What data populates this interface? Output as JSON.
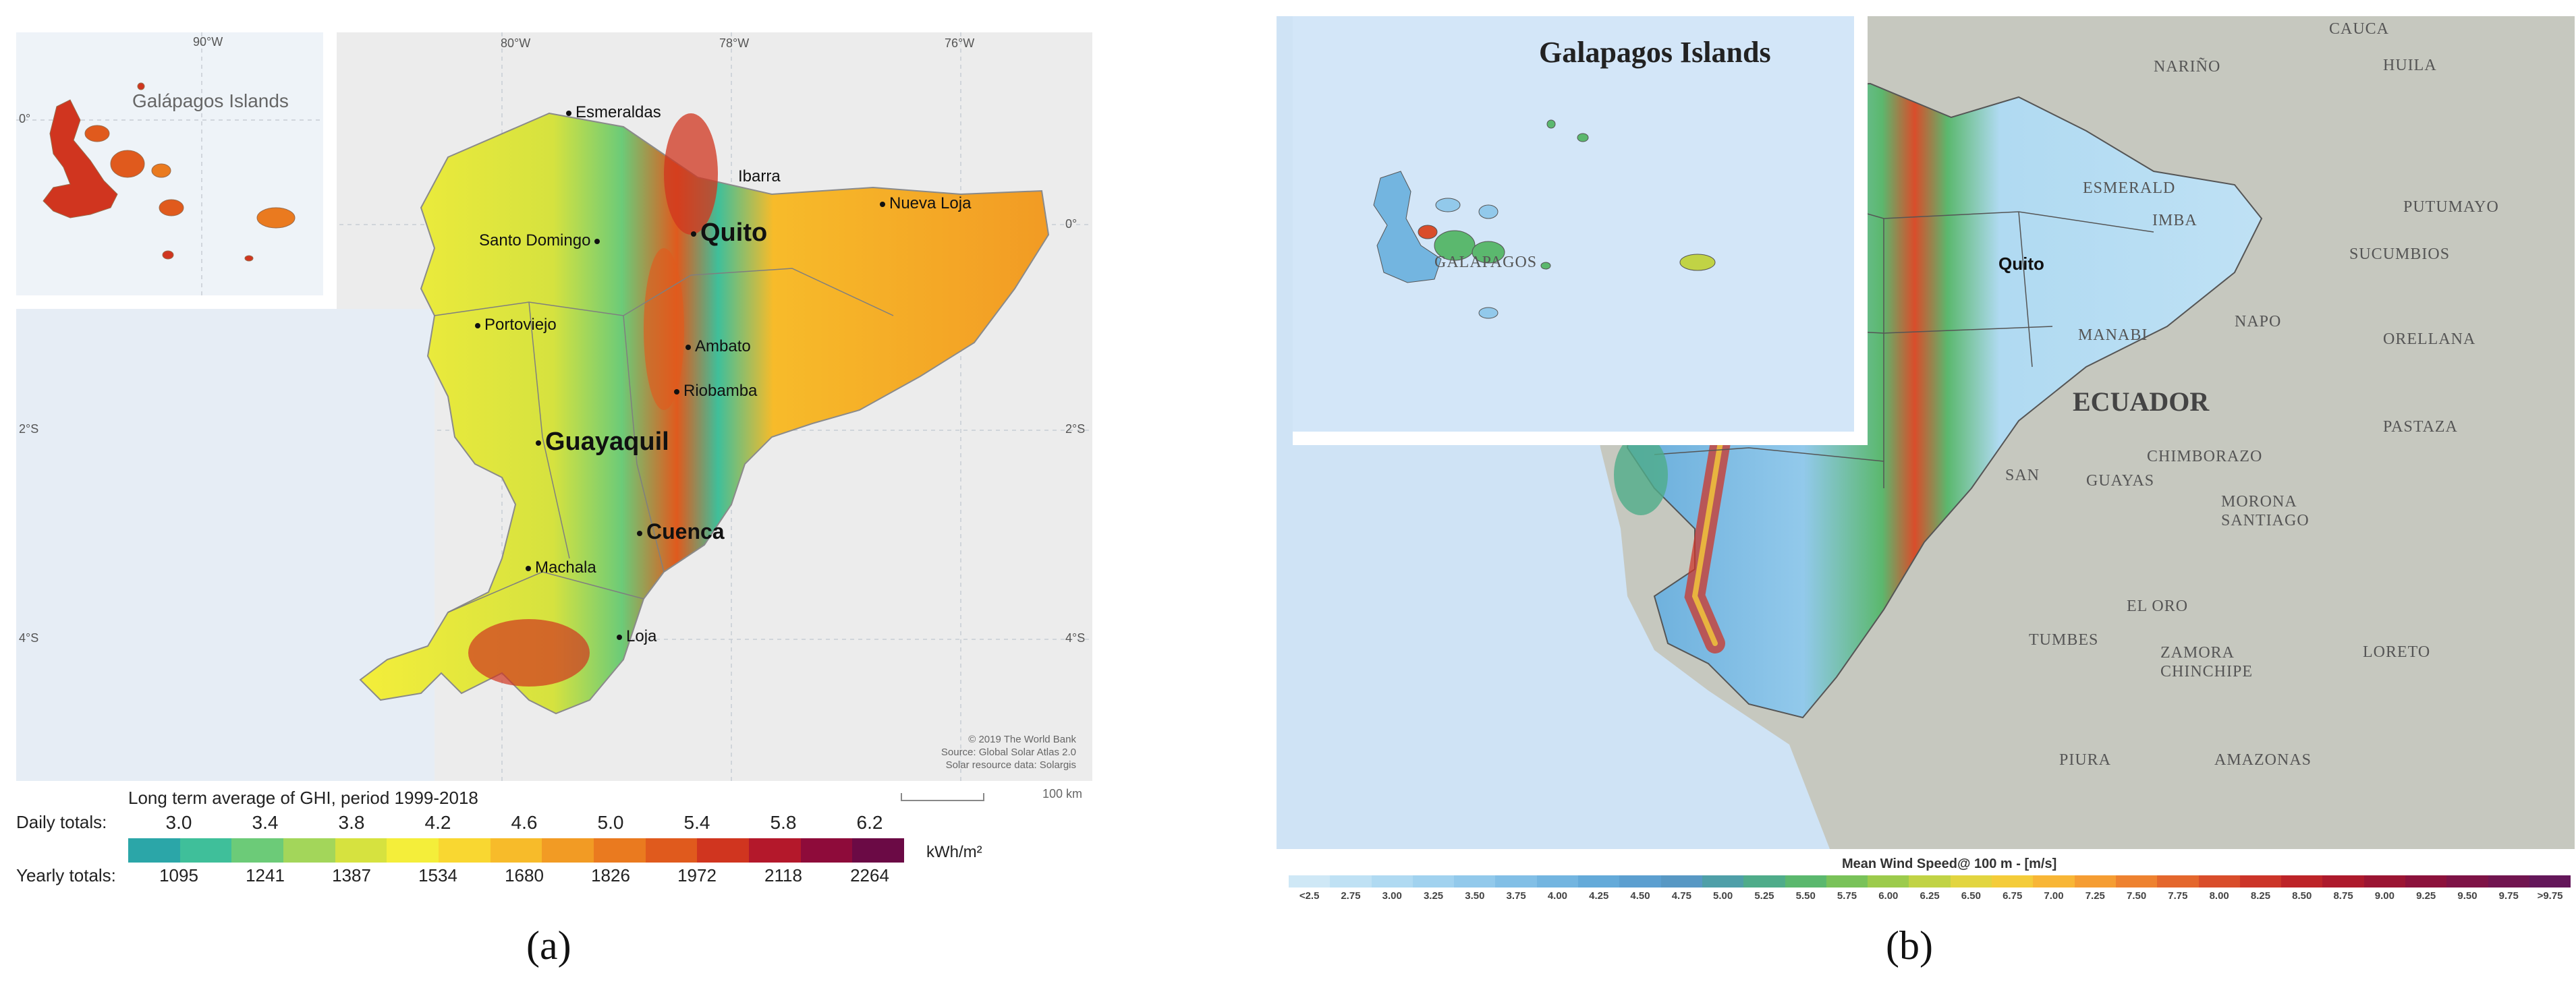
{
  "panel_a": {
    "label": "(a)",
    "inset_title": "Galápagos Islands",
    "inset_lon_label": "90°W",
    "inset_lat_label": "0°",
    "lon_labels": [
      "80°W",
      "78°W",
      "76°W"
    ],
    "lat_labels_left": [
      "2°S",
      "4°S"
    ],
    "lat_labels_right": [
      "0°",
      "2°S",
      "4°S"
    ],
    "cities": [
      {
        "name": "Esmeraldas",
        "size": "small"
      },
      {
        "name": "Ibarra",
        "size": "small"
      },
      {
        "name": "Nueva Loja",
        "size": "small"
      },
      {
        "name": "Quito",
        "size": "large"
      },
      {
        "name": "Santo Domingo",
        "size": "small"
      },
      {
        "name": "Portoviejo",
        "size": "small"
      },
      {
        "name": "Ambato",
        "size": "small"
      },
      {
        "name": "Riobamba",
        "size": "small"
      },
      {
        "name": "Guayaquil",
        "size": "large"
      },
      {
        "name": "Cuenca",
        "size": "medium"
      },
      {
        "name": "Machala",
        "size": "small"
      },
      {
        "name": "Loja",
        "size": "small"
      }
    ],
    "credits": [
      "© 2019 The World Bank",
      "Source: Global Solar Atlas 2.0",
      "Solar resource data: Solargis"
    ],
    "scale_label": "100 km",
    "legend": {
      "title": "Long term average of GHI, period 1999-2018",
      "daily_label": "Daily totals:",
      "yearly_label": "Yearly totals:",
      "daily_values": [
        "3.0",
        "3.4",
        "3.8",
        "4.2",
        "4.6",
        "5.0",
        "5.4",
        "5.8",
        "6.2"
      ],
      "yearly_values": [
        "1095",
        "1241",
        "1387",
        "1534",
        "1680",
        "1826",
        "1972",
        "2118",
        "2264"
      ],
      "unit": "kWh/m²",
      "colors": [
        "#2ba6a8",
        "#3fbf9a",
        "#6ccb78",
        "#a3d65a",
        "#d6e23f",
        "#f4ee3a",
        "#f9d731",
        "#f7bb2a",
        "#f29b24",
        "#ea7a1f",
        "#e05a1d",
        "#d0351f",
        "#b4182b",
        "#8e0b3a",
        "#6b0a45"
      ]
    }
  },
  "panel_b": {
    "label": "(b)",
    "inset_title": "Galapagos Islands",
    "inset_region": "GALAPAGOS",
    "country": "ECUADOR",
    "capital": "Quito",
    "regions": [
      "CAUCA",
      "HUILA",
      "NARIÑO",
      "PUTUMAYO",
      "SUCUMBIOS",
      "ESMERALD",
      "IMBA",
      "NAPO",
      "ORELLANA",
      "MANABI",
      "PASTAZA",
      "CHIMBORAZO",
      "GUAYAS",
      "MORONA SANTIAGO",
      "SAN",
      "EL ORO",
      "TUMBES",
      "ZAMORA CHINCHIPE",
      "AMAZONAS",
      "PIURA",
      "LORETO"
    ],
    "legend": {
      "title": "Mean Wind Speed@ 100 m - [m/s]",
      "ticks": [
        "<2.5",
        "2.75",
        "3.00",
        "3.25",
        "3.50",
        "3.75",
        "4.00",
        "4.25",
        "4.50",
        "4.75",
        "5.00",
        "5.25",
        "5.50",
        "5.75",
        "6.00",
        "6.25",
        "6.50",
        "6.75",
        "7.00",
        "7.25",
        "7.50",
        "7.75",
        "8.00",
        "8.25",
        "8.50",
        "8.75",
        "9.00",
        "9.25",
        "9.50",
        "9.75",
        ">9.75"
      ],
      "colors": [
        "#cfe8f6",
        "#bfe1f4",
        "#b0daf2",
        "#a1d2ef",
        "#92c9eb",
        "#82bfe6",
        "#73b5e0",
        "#64aad9",
        "#5c9fd0",
        "#5898c4",
        "#4f9fa8",
        "#4fac8a",
        "#5bb86e",
        "#79c259",
        "#9ccb4c",
        "#c1d345",
        "#e2d540",
        "#f4cc3a",
        "#f8b636",
        "#f59d33",
        "#ee8230",
        "#e4672d",
        "#d94d2b",
        "#cc3529",
        "#bd2428",
        "#ad1a2c",
        "#9b1533",
        "#8c123c",
        "#7e1346",
        "#711550",
        "#64175a"
      ]
    }
  }
}
